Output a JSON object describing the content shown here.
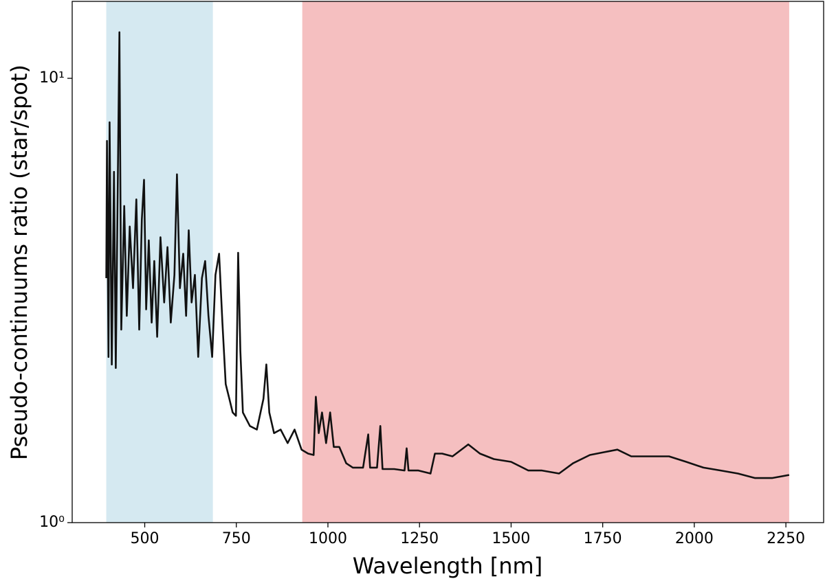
{
  "chart_data": {
    "type": "line",
    "xlabel": "Wavelength [nm]",
    "ylabel": "Pseudo-continuums ratio (star/spot)",
    "x": [
      395,
      397,
      401,
      404,
      410,
      416,
      421,
      431,
      436,
      444,
      451,
      459,
      468,
      477,
      485,
      492,
      498,
      504,
      511,
      519,
      526,
      534,
      543,
      553,
      562,
      571,
      581,
      588,
      596,
      605,
      613,
      620,
      628,
      637,
      646,
      656,
      665,
      674,
      684,
      693,
      703,
      712,
      721,
      731,
      740,
      749,
      755,
      761,
      768,
      787,
      806,
      824,
      832,
      840,
      853,
      871,
      890,
      909,
      928,
      946,
      961,
      967,
      975,
      984,
      995,
      1006,
      1016,
      1031,
      1050,
      1068,
      1096,
      1110,
      1115,
      1134,
      1143,
      1149,
      1181,
      1209,
      1215,
      1220,
      1247,
      1280,
      1292,
      1312,
      1340,
      1383,
      1415,
      1453,
      1500,
      1547,
      1584,
      1631,
      1669,
      1715,
      1753,
      1790,
      1828,
      1884,
      1931,
      1978,
      2025,
      2072,
      2119,
      2166,
      2212,
      2259
    ],
    "values": [
      3.55,
      7.23,
      2.36,
      7.96,
      2.27,
      6.16,
      2.23,
      12.7,
      2.72,
      5.16,
      2.92,
      4.64,
      3.37,
      5.34,
      2.72,
      4.81,
      5.91,
      3.02,
      4.32,
      2.82,
      3.88,
      2.62,
      4.39,
      3.13,
      4.17,
      2.82,
      3.61,
      6.08,
      3.37,
      4.03,
      2.92,
      4.55,
      3.13,
      3.61,
      2.36,
      3.55,
      3.88,
      2.92,
      2.36,
      3.61,
      4.03,
      2.82,
      2.05,
      1.9,
      1.77,
      1.74,
      4.05,
      2.44,
      1.77,
      1.65,
      1.62,
      1.9,
      2.27,
      1.77,
      1.59,
      1.62,
      1.51,
      1.62,
      1.46,
      1.43,
      1.42,
      1.92,
      1.59,
      1.77,
      1.51,
      1.77,
      1.48,
      1.48,
      1.36,
      1.33,
      1.33,
      1.58,
      1.33,
      1.33,
      1.65,
      1.32,
      1.32,
      1.31,
      1.47,
      1.31,
      1.31,
      1.29,
      1.43,
      1.43,
      1.41,
      1.5,
      1.43,
      1.39,
      1.37,
      1.31,
      1.31,
      1.29,
      1.36,
      1.42,
      1.44,
      1.46,
      1.41,
      1.41,
      1.41,
      1.37,
      1.33,
      1.31,
      1.29,
      1.26,
      1.26,
      1.28
    ],
    "color": "#111111",
    "shaded_regions": [
      {
        "start": 395,
        "end": 686,
        "color": "#d5e9f1"
      },
      {
        "start": 930,
        "end": 2259,
        "color": "#f5bfc0"
      }
    ],
    "xlim": [
      302,
      2353
    ],
    "xticks": [
      500,
      750,
      1000,
      1250,
      1500,
      1750,
      2000,
      2250
    ],
    "ylim": [
      1,
      14.9
    ],
    "yscale": "log",
    "yticks": [
      {
        "value": 1,
        "label": "10⁰"
      },
      {
        "value": 10,
        "label": "10¹"
      }
    ]
  }
}
